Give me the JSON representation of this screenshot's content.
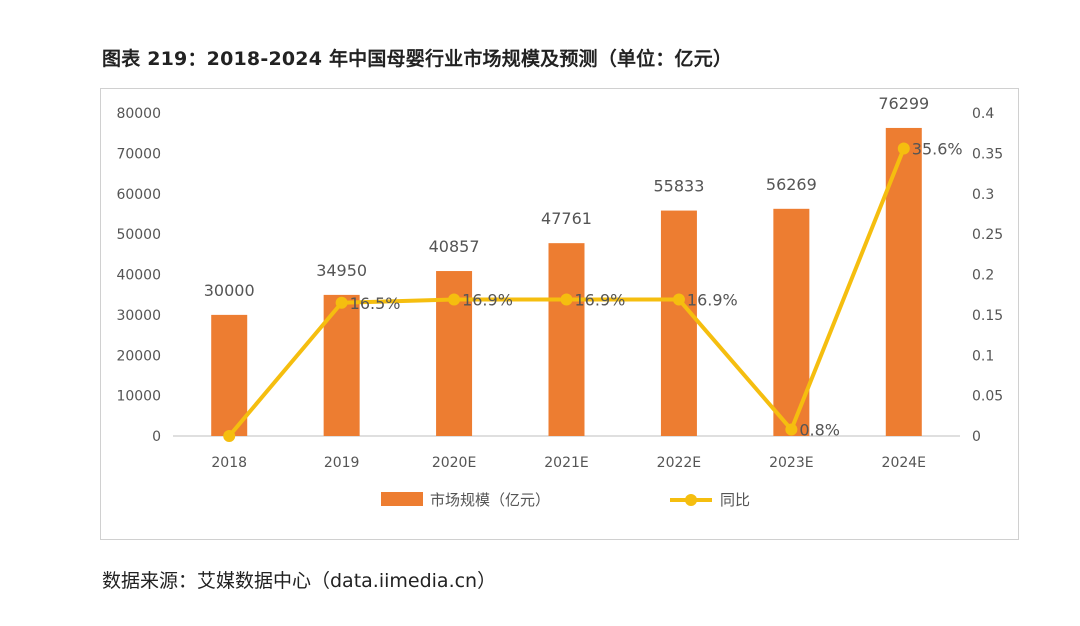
{
  "page": {
    "title": "图表 219：2018-2024 年中国母婴行业市场规模及预测（单位：亿元）",
    "source": "数据来源：艾媒数据中心（data.iimedia.cn）"
  },
  "colors": {
    "bar": "#ED7D31",
    "line": "#F5BE0F",
    "axis": "#bfbfbf",
    "text": "#595959"
  },
  "chart_data": {
    "type": "bar",
    "title": "",
    "categories": [
      "2018",
      "2019",
      "2020E",
      "2021E",
      "2022E",
      "2023E",
      "2024E"
    ],
    "series": [
      {
        "name": "市场规模（亿元）",
        "type": "bar",
        "axis": "left",
        "values": [
          30000,
          34950,
          40857,
          47761,
          55833,
          56269,
          76299
        ],
        "labels": [
          "30000",
          "34950",
          "40857",
          "47761",
          "55833",
          "56269",
          "76299"
        ]
      },
      {
        "name": "同比",
        "type": "line",
        "axis": "right",
        "values": [
          0,
          0.165,
          0.169,
          0.169,
          0.169,
          0.008,
          0.356
        ],
        "labels": [
          "",
          "16.5%",
          "16.9%",
          "16.9%",
          "16.9%",
          "0.8%",
          "35.6%"
        ]
      }
    ],
    "y_left": {
      "min": 0,
      "max": 80000,
      "ticks": [
        "0",
        "10000",
        "20000",
        "30000",
        "40000",
        "50000",
        "60000",
        "70000",
        "80000"
      ]
    },
    "y_right": {
      "min": 0,
      "max": 0.4,
      "ticks": [
        "0",
        "0.05",
        "0.1",
        "0.15",
        "0.2",
        "0.25",
        "0.3",
        "0.35",
        "0.4"
      ]
    },
    "legend_position": "bottom",
    "grid": false
  }
}
